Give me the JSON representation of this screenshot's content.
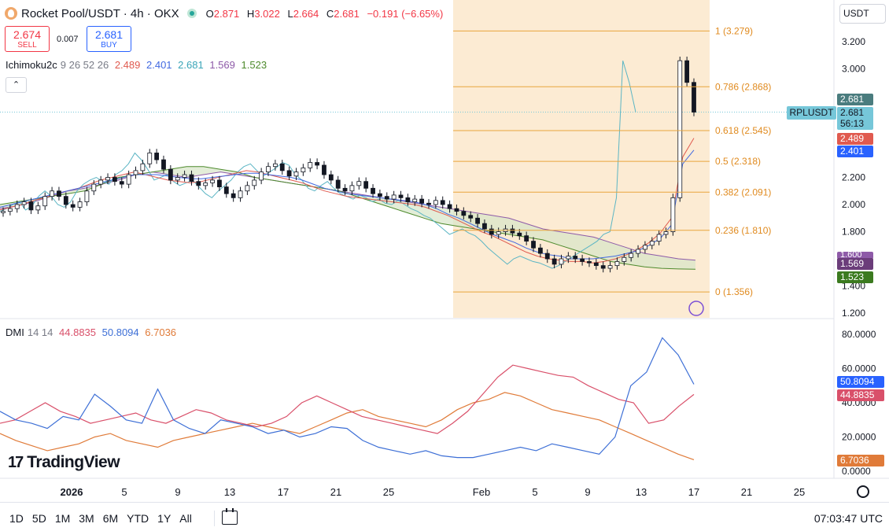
{
  "header": {
    "title": "Rocket Pool/USDT · 4h · OKX",
    "o_label": "O",
    "o_value": "2.871",
    "h_label": "H",
    "h_value": "3.022",
    "l_label": "L",
    "l_value": "2.664",
    "c_label": "C",
    "c_value": "2.681",
    "change": "−0.191 (−6.65%)"
  },
  "trade": {
    "sell_price": "2.674",
    "sell_label": "SELL",
    "spread": "0.007",
    "buy_price": "2.681",
    "buy_label": "BUY"
  },
  "ichimoku": {
    "name": "Ichimoku2c",
    "params": "9 26 52 26",
    "v1": "2.489",
    "v2": "2.401",
    "v3": "2.681",
    "v4": "1.569",
    "v5": "1.523"
  },
  "dmi": {
    "name": "DMI",
    "params": "14 14",
    "v1": "44.8835",
    "v2": "50.8094",
    "v3": "6.7036"
  },
  "currency": "USDT",
  "price_tags": {
    "symbol": "RPLUSDT",
    "last": "2.681",
    "current": "2.681",
    "countdown": "56:13",
    "tenkan": "2.489",
    "kijun": "2.401",
    "span_a": "1.569",
    "span_b": "1.523",
    "partial": "1.600"
  },
  "dmi_tags": {
    "plus": "50.8094",
    "minus": "44.8835",
    "adx": "6.7036"
  },
  "colors": {
    "up": "#26a69a",
    "down": "#f23645",
    "tenkan": "#e05a4f",
    "kijun": "#4169e1",
    "lagging": "#5bb5c4",
    "span_a": "#8e5aa8",
    "span_b": "#4d8a2c",
    "fib": "#e8a53c",
    "fib_zone": "#fbe7cb",
    "di_plus": "#3d6fd6",
    "di_minus": "#d9506a",
    "adx": "#e07b39"
  },
  "branding": "TradingView",
  "toolbar": {
    "ranges": [
      "1D",
      "5D",
      "1M",
      "3M",
      "6M",
      "YTD",
      "1Y",
      "All"
    ],
    "time": "07:03:47 UTC"
  },
  "chart_data": {
    "type": "candlestick",
    "title": "Rocket Pool/USDT · 4h · OKX",
    "price_axis": {
      "ticks": [
        "3.200",
        "3.000",
        "2.200",
        "2.000",
        "1.800",
        "1.400",
        "1.200"
      ],
      "range": [
        1.2,
        3.3
      ]
    },
    "dmi_axis": {
      "ticks": [
        "80.0000",
        "60.0000",
        "40.0000",
        "20.0000",
        "0.0000"
      ],
      "range": [
        0,
        80
      ]
    },
    "time_axis": {
      "ticks": [
        "2026",
        "5",
        "9",
        "13",
        "17",
        "21",
        "25",
        "Feb",
        "5",
        "9",
        "13",
        "17",
        "21",
        "25"
      ]
    },
    "fib_levels": [
      {
        "label": "1 (3.279)",
        "value": 3.279
      },
      {
        "label": "0.786 (2.868)",
        "value": 2.868
      },
      {
        "label": "0.618 (2.545)",
        "value": 2.545
      },
      {
        "label": "0.5 (2.318)",
        "value": 2.318
      },
      {
        "label": "0.382 (2.091)",
        "value": 2.091
      },
      {
        "label": "0.236 (1.810)",
        "value": 1.81
      },
      {
        "label": "0 (1.356)",
        "value": 1.356
      }
    ],
    "price_closes": [
      1.95,
      1.97,
      2.0,
      2.02,
      1.96,
      1.99,
      2.06,
      2.1,
      2.06,
      2.0,
      1.98,
      2.02,
      2.1,
      2.15,
      2.18,
      2.2,
      2.17,
      2.15,
      2.22,
      2.25,
      2.3,
      2.38,
      2.33,
      2.26,
      2.18,
      2.2,
      2.22,
      2.17,
      2.14,
      2.16,
      2.18,
      2.13,
      2.08,
      2.05,
      2.1,
      2.14,
      2.18,
      2.24,
      2.28,
      2.3,
      2.25,
      2.21,
      2.24,
      2.27,
      2.31,
      2.29,
      2.22,
      2.18,
      2.12,
      2.1,
      2.14,
      2.17,
      2.12,
      2.08,
      2.06,
      2.04,
      2.07,
      2.05,
      2.02,
      2.04,
      2.01,
      2.0,
      2.03,
      2.0,
      1.97,
      1.95,
      1.92,
      1.9,
      1.86,
      1.82,
      1.78,
      1.8,
      1.82,
      1.79,
      1.77,
      1.73,
      1.68,
      1.64,
      1.6,
      1.56,
      1.6,
      1.62,
      1.6,
      1.58,
      1.57,
      1.55,
      1.53,
      1.55,
      1.58,
      1.61,
      1.64,
      1.67,
      1.7,
      1.73,
      1.78,
      1.8,
      2.05,
      3.06,
      2.9,
      2.681
    ],
    "tenkan": [
      1.96,
      1.98,
      2.0,
      2.03,
      2.05,
      2.08,
      2.1,
      2.12,
      2.15,
      2.18,
      2.2,
      2.22,
      2.24,
      2.22,
      2.2,
      2.18,
      2.17,
      2.16,
      2.17,
      2.19,
      2.21,
      2.23,
      2.25,
      2.24,
      2.22,
      2.2,
      2.18,
      2.16,
      2.13,
      2.1,
      2.08,
      2.06,
      2.05,
      2.04,
      2.03,
      2.02,
      2.01,
      2.0,
      1.98,
      1.95,
      1.92,
      1.88,
      1.84,
      1.8,
      1.77,
      1.73,
      1.69,
      1.65,
      1.62,
      1.6,
      1.59,
      1.58,
      1.58,
      1.57,
      1.58,
      1.6,
      1.63,
      1.67,
      1.72,
      1.79,
      1.9,
      2.35,
      2.489
    ],
    "kijun": [
      1.98,
      2.0,
      2.02,
      2.04,
      2.06,
      2.08,
      2.1,
      2.12,
      2.14,
      2.16,
      2.18,
      2.2,
      2.22,
      2.22,
      2.22,
      2.21,
      2.2,
      2.19,
      2.19,
      2.2,
      2.21,
      2.22,
      2.23,
      2.23,
      2.22,
      2.21,
      2.2,
      2.18,
      2.15,
      2.12,
      2.1,
      2.08,
      2.07,
      2.06,
      2.05,
      2.04,
      2.03,
      2.02,
      2.0,
      1.97,
      1.93,
      1.9,
      1.86,
      1.82,
      1.78,
      1.75,
      1.72,
      1.68,
      1.65,
      1.63,
      1.62,
      1.6,
      1.6,
      1.6,
      1.61,
      1.62,
      1.64,
      1.66,
      1.7,
      1.75,
      1.85,
      2.3,
      2.401
    ],
    "span_a": [
      1.97,
      1.99,
      2.02,
      2.06,
      2.1,
      2.12,
      2.15,
      2.18,
      2.22,
      2.24,
      2.22,
      2.2,
      2.22,
      2.24,
      2.22,
      2.2,
      2.18,
      2.16,
      2.14,
      2.12,
      2.1,
      2.08,
      2.06,
      2.04,
      2.02,
      2.0,
      1.98,
      1.96,
      1.94,
      1.92,
      1.9,
      1.86,
      1.82,
      1.8,
      1.78,
      1.76,
      1.72,
      1.68,
      1.64,
      1.62,
      1.6,
      1.59,
      1.58,
      1.575,
      1.57,
      1.569
    ],
    "span_b": [
      2.0,
      2.02,
      2.04,
      2.06,
      2.08,
      2.1,
      2.15,
      2.2,
      2.22,
      2.24,
      2.26,
      2.28,
      2.28,
      2.26,
      2.24,
      2.2,
      2.18,
      2.16,
      2.14,
      2.12,
      2.1,
      2.06,
      2.02,
      1.98,
      1.94,
      1.9,
      1.86,
      1.84,
      1.82,
      1.8,
      1.78,
      1.76,
      1.74,
      1.7,
      1.66,
      1.62,
      1.58,
      1.56,
      1.54,
      1.53,
      1.525,
      1.523
    ],
    "di_plus": [
      35,
      30,
      28,
      25,
      32,
      30,
      45,
      38,
      30,
      28,
      48,
      30,
      25,
      22,
      30,
      28,
      26,
      22,
      24,
      20,
      22,
      26,
      25,
      18,
      14,
      12,
      10,
      12,
      9,
      8,
      8,
      10,
      12,
      14,
      12,
      16,
      14,
      12,
      10,
      20,
      50,
      58,
      78,
      68,
      50.8094
    ],
    "di_minus": [
      28,
      30,
      35,
      40,
      35,
      32,
      28,
      30,
      32,
      34,
      30,
      28,
      32,
      36,
      34,
      30,
      28,
      26,
      28,
      32,
      40,
      44,
      40,
      36,
      32,
      30,
      28,
      26,
      24,
      22,
      28,
      35,
      45,
      55,
      62,
      60,
      58,
      56,
      55,
      50,
      46,
      42,
      40,
      28,
      30,
      38,
      44.8835
    ],
    "adx": [
      22,
      18,
      15,
      12,
      14,
      16,
      20,
      22,
      18,
      16,
      14,
      18,
      20,
      22,
      24,
      26,
      28,
      26,
      24,
      22,
      26,
      30,
      34,
      36,
      32,
      30,
      28,
      26,
      30,
      36,
      40,
      42,
      46,
      44,
      40,
      36,
      34,
      32,
      30,
      26,
      22,
      18,
      14,
      10,
      6.7036
    ]
  }
}
